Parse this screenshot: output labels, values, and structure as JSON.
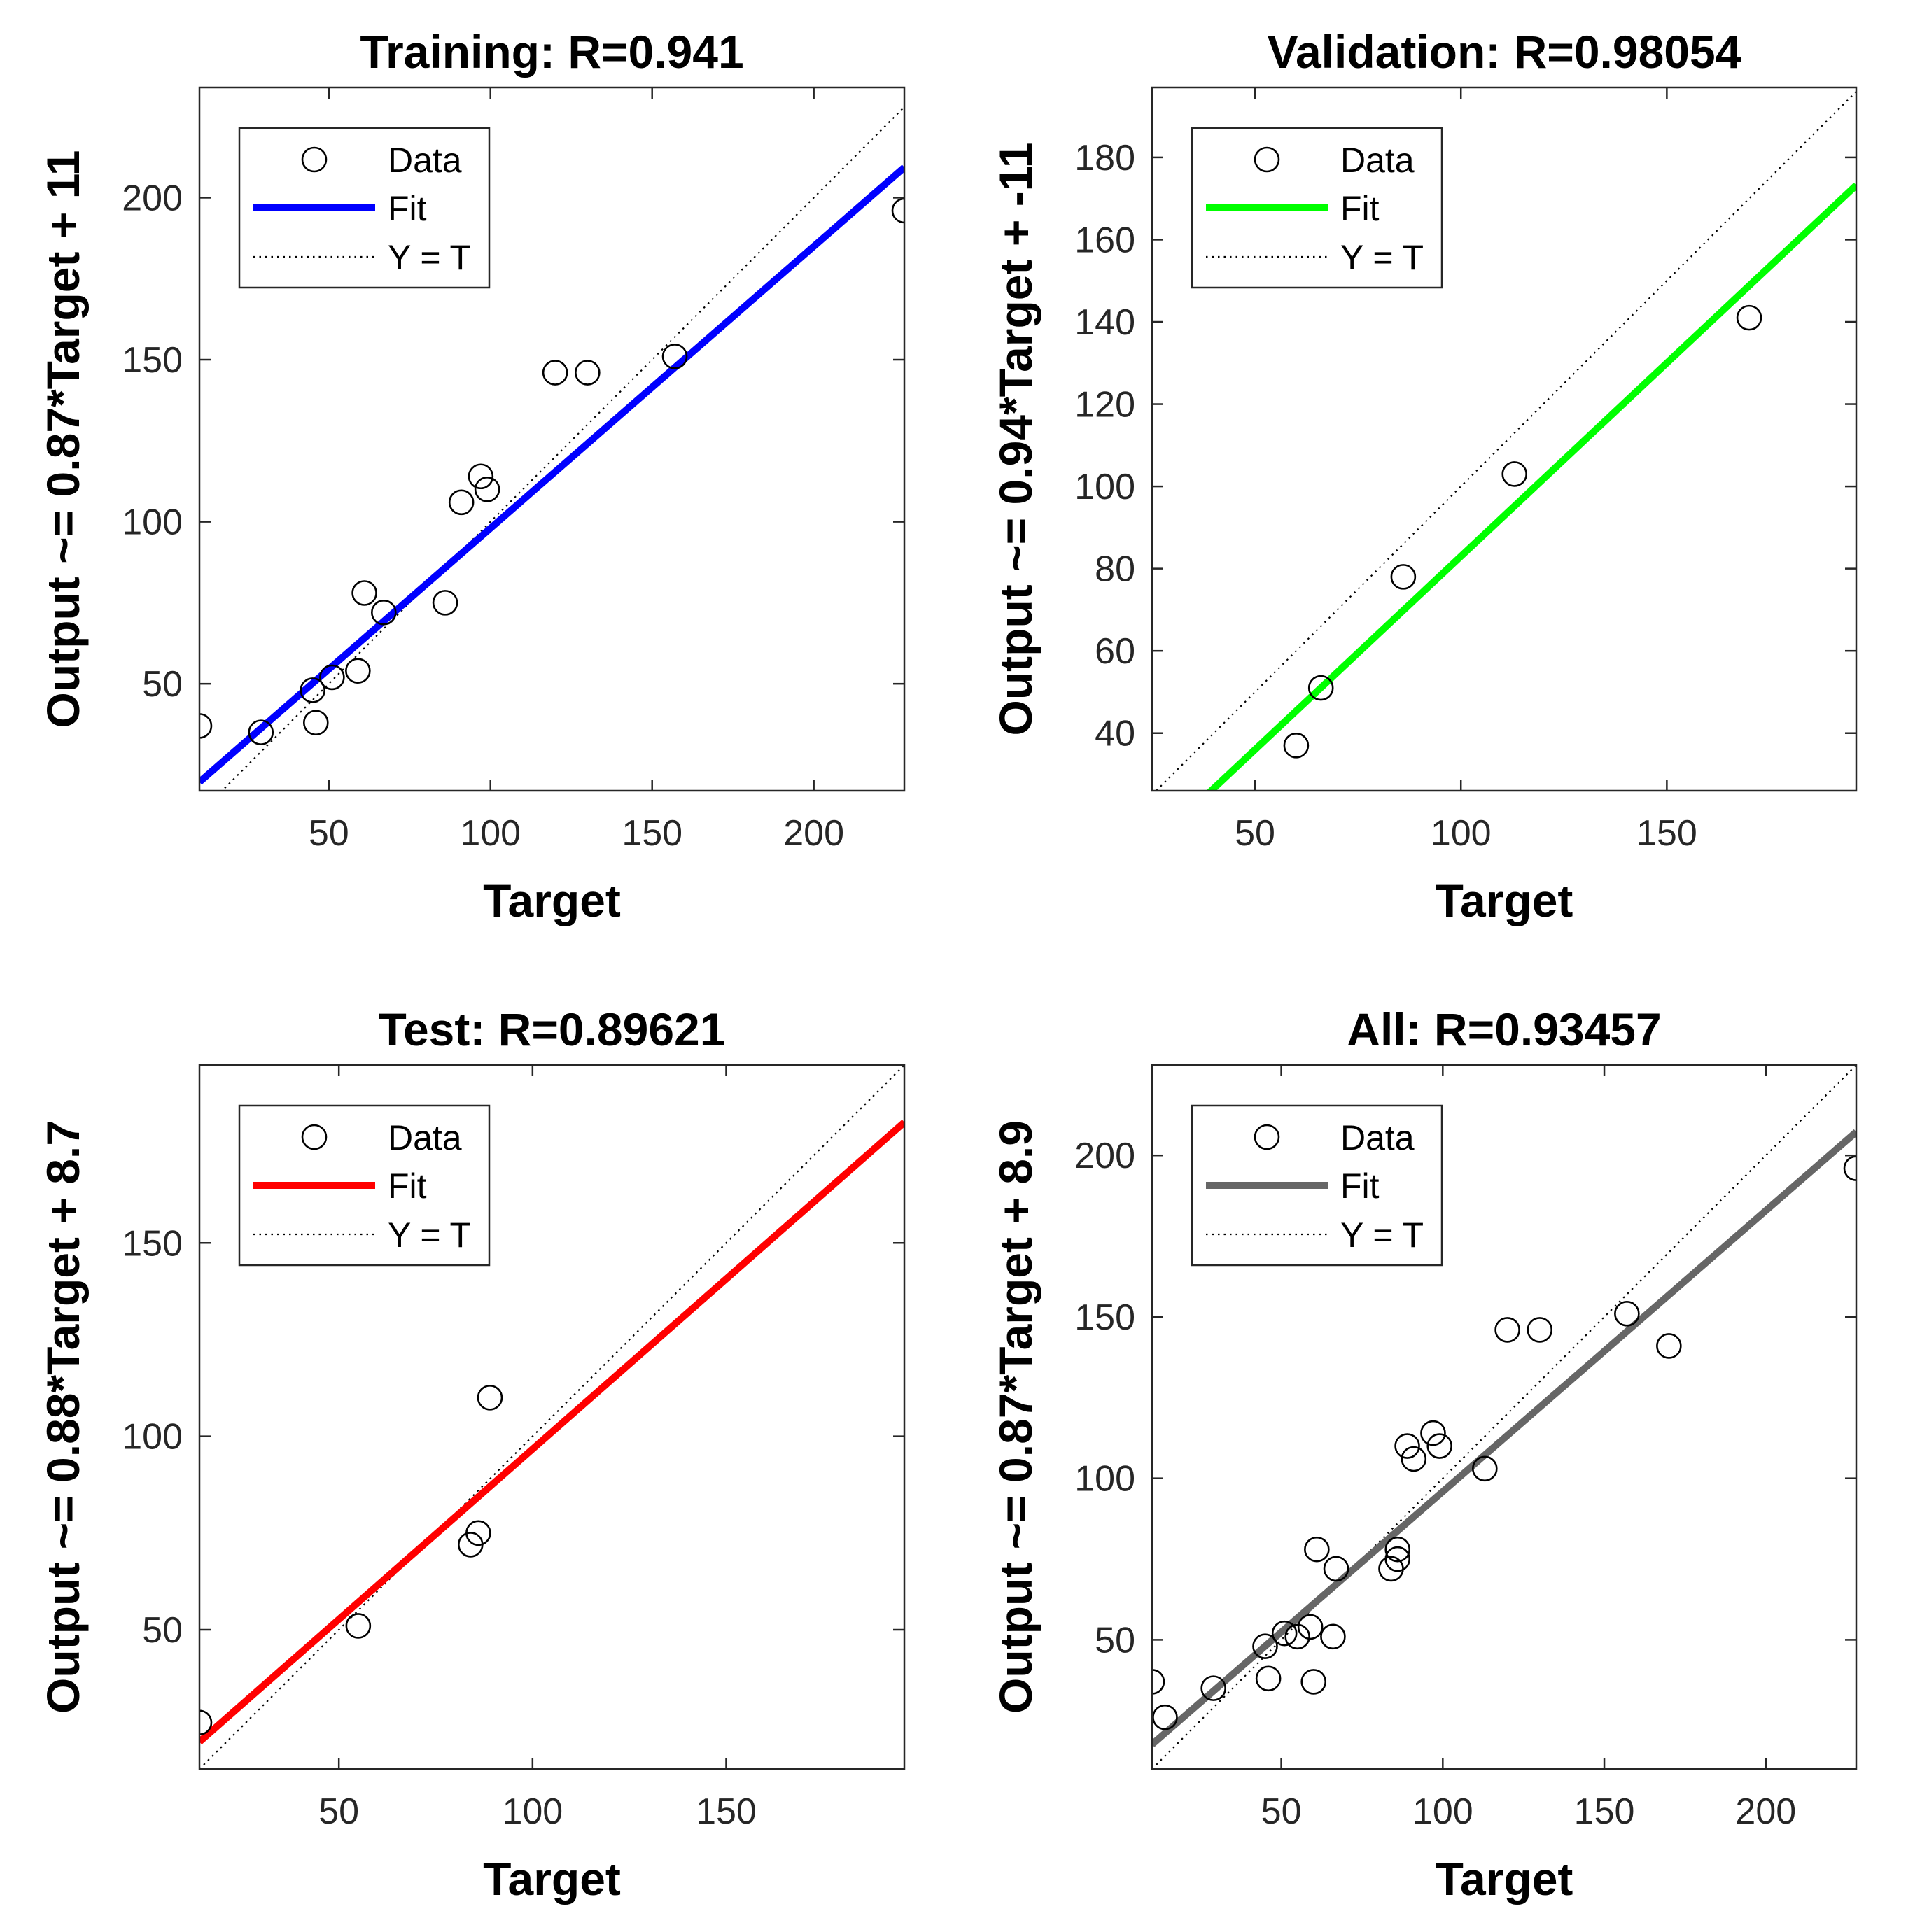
{
  "figure_title": "",
  "chart_data": [
    {
      "type": "scatter",
      "panel": "top-left",
      "title": "Training: R=0.941",
      "xlabel": "Target",
      "ylabel": "Output ~= 0.87*Target + 11",
      "xlim": [
        10,
        228
      ],
      "ylim": [
        17,
        234
      ],
      "xticks": [
        50,
        100,
        150,
        200
      ],
      "xtick_labels": [
        "50",
        "100",
        "150",
        "200"
      ],
      "yticks": [
        50,
        100,
        150,
        200
      ],
      "ytick_labels": [
        "50",
        "100",
        "150",
        "200"
      ],
      "fit": {
        "slope": 0.87,
        "intercept": 11,
        "color": "#0000ff"
      },
      "identity_line": true,
      "legend": {
        "placement": "top-left",
        "entries": [
          "Data",
          "Fit",
          "Y = T"
        ]
      },
      "points": [
        {
          "x": 10,
          "y": 37
        },
        {
          "x": 29,
          "y": 35
        },
        {
          "x": 45,
          "y": 48
        },
        {
          "x": 46,
          "y": 38
        },
        {
          "x": 51,
          "y": 52
        },
        {
          "x": 59,
          "y": 54
        },
        {
          "x": 61,
          "y": 78
        },
        {
          "x": 67,
          "y": 72
        },
        {
          "x": 86,
          "y": 75
        },
        {
          "x": 91,
          "y": 106
        },
        {
          "x": 97,
          "y": 114
        },
        {
          "x": 99,
          "y": 110
        },
        {
          "x": 120,
          "y": 146
        },
        {
          "x": 130,
          "y": 146
        },
        {
          "x": 157,
          "y": 151
        },
        {
          "x": 228,
          "y": 196
        }
      ]
    },
    {
      "type": "scatter",
      "panel": "top-right",
      "title": "Validation: R=0.98054",
      "xlabel": "Target",
      "ylabel": "Output ~= 0.94*Target + -11",
      "xlim": [
        25,
        196
      ],
      "ylim": [
        26,
        197
      ],
      "xticks": [
        50,
        100,
        150
      ],
      "xtick_labels": [
        "50",
        "100",
        "150"
      ],
      "yticks": [
        40,
        60,
        80,
        100,
        120,
        140,
        160,
        180
      ],
      "ytick_labels": [
        "40",
        "60",
        "80",
        "100",
        "120",
        "140",
        "160",
        "180"
      ],
      "fit": {
        "slope": 0.94,
        "intercept": -11,
        "color": "#00ff00"
      },
      "identity_line": true,
      "legend": {
        "placement": "top-left",
        "entries": [
          "Data",
          "Fit",
          "Y = T"
        ]
      },
      "points": [
        {
          "x": 60,
          "y": 37
        },
        {
          "x": 66,
          "y": 51
        },
        {
          "x": 86,
          "y": 78
        },
        {
          "x": 113,
          "y": 103
        },
        {
          "x": 170,
          "y": 141
        }
      ]
    },
    {
      "type": "scatter",
      "panel": "bottom-left",
      "title": "Test: R=0.89621",
      "xlabel": "Target",
      "ylabel": "Output ~= 0.88*Target + 8.7",
      "xlim": [
        14,
        196
      ],
      "ylim": [
        14,
        196
      ],
      "xticks": [
        50,
        100,
        150
      ],
      "xtick_labels": [
        "50",
        "100",
        "150"
      ],
      "yticks": [
        50,
        100,
        150
      ],
      "ytick_labels": [
        "50",
        "100",
        "150"
      ],
      "fit": {
        "slope": 0.88,
        "intercept": 8.7,
        "color": "#ff0000"
      },
      "identity_line": true,
      "legend": {
        "placement": "top-left",
        "entries": [
          "Data",
          "Fit",
          "Y = T"
        ]
      },
      "points": [
        {
          "x": 14,
          "y": 26
        },
        {
          "x": 55,
          "y": 51
        },
        {
          "x": 84,
          "y": 72
        },
        {
          "x": 86,
          "y": 75
        },
        {
          "x": 89,
          "y": 110
        }
      ]
    },
    {
      "type": "scatter",
      "panel": "bottom-right",
      "title": "All: R=0.93457",
      "xlabel": "Target",
      "ylabel": "Output ~= 0.87*Target + 8.9",
      "xlim": [
        10,
        228
      ],
      "ylim": [
        10,
        228
      ],
      "xticks": [
        50,
        100,
        150,
        200
      ],
      "xtick_labels": [
        "50",
        "100",
        "150",
        "200"
      ],
      "yticks": [
        50,
        100,
        150,
        200
      ],
      "ytick_labels": [
        "50",
        "100",
        "150",
        "200"
      ],
      "fit": {
        "slope": 0.87,
        "intercept": 8.9,
        "color": "#666666"
      },
      "identity_line": true,
      "legend": {
        "placement": "top-left",
        "entries": [
          "Data",
          "Fit",
          "Y = T"
        ]
      },
      "points": [
        {
          "x": 10,
          "y": 37
        },
        {
          "x": 14,
          "y": 26
        },
        {
          "x": 29,
          "y": 35
        },
        {
          "x": 45,
          "y": 48
        },
        {
          "x": 46,
          "y": 38
        },
        {
          "x": 51,
          "y": 52
        },
        {
          "x": 55,
          "y": 51
        },
        {
          "x": 59,
          "y": 54
        },
        {
          "x": 60,
          "y": 37
        },
        {
          "x": 61,
          "y": 78
        },
        {
          "x": 66,
          "y": 51
        },
        {
          "x": 67,
          "y": 72
        },
        {
          "x": 84,
          "y": 72
        },
        {
          "x": 86,
          "y": 75
        },
        {
          "x": 86,
          "y": 78
        },
        {
          "x": 89,
          "y": 110
        },
        {
          "x": 91,
          "y": 106
        },
        {
          "x": 97,
          "y": 114
        },
        {
          "x": 99,
          "y": 110
        },
        {
          "x": 113,
          "y": 103
        },
        {
          "x": 120,
          "y": 146
        },
        {
          "x": 130,
          "y": 146
        },
        {
          "x": 157,
          "y": 151
        },
        {
          "x": 170,
          "y": 141
        },
        {
          "x": 228,
          "y": 196
        }
      ]
    }
  ]
}
